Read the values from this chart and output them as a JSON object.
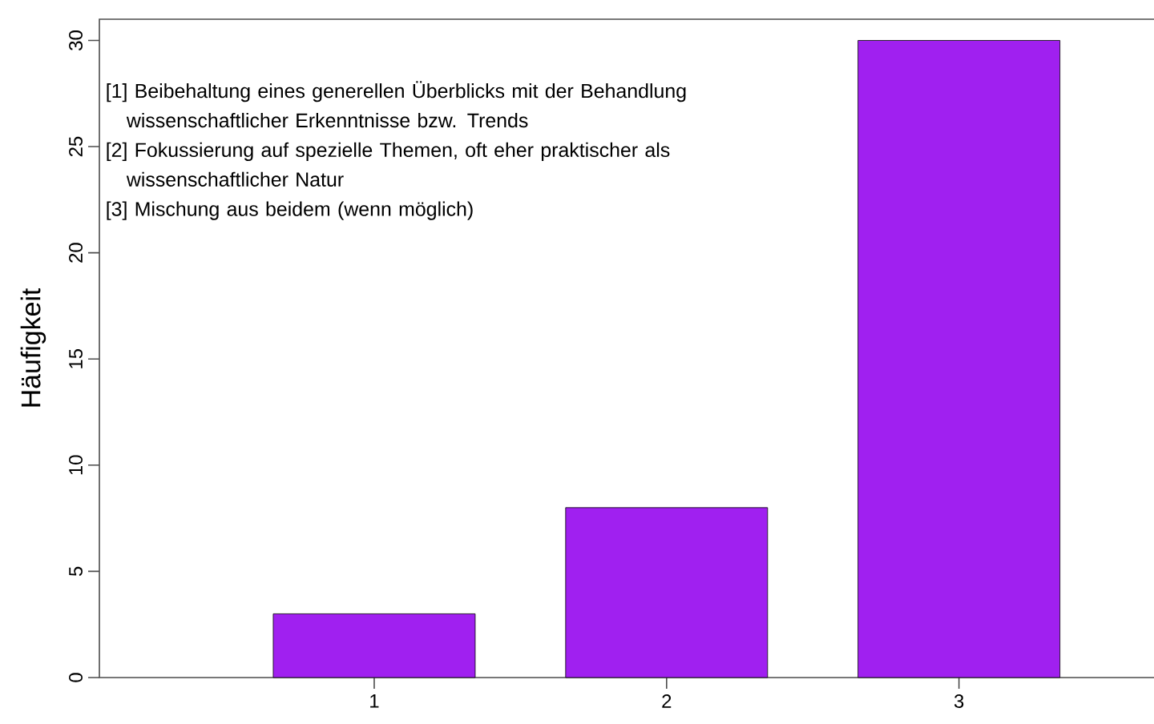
{
  "chart_data": {
    "type": "bar",
    "ylabel": "Häufigkeit",
    "categories": [
      "1",
      "2",
      "3"
    ],
    "values": [
      3,
      8,
      30
    ],
    "color": "#a020f0",
    "ylim": [
      0,
      31
    ],
    "yticks": [
      0,
      5,
      10,
      15,
      20,
      25,
      30
    ],
    "grid": false,
    "annotations": [
      "[1] Beibehaltung eines generellen Überblicks mit der Behandlung wissenschaftlicher Erkenntnisse bzw. Trends",
      "[2] Fokussierung auf spezielle Themen, oft eher praktischer als wissenschaftlicher Natur",
      "[3] Mischung aus beidem (wenn möglich)"
    ]
  }
}
